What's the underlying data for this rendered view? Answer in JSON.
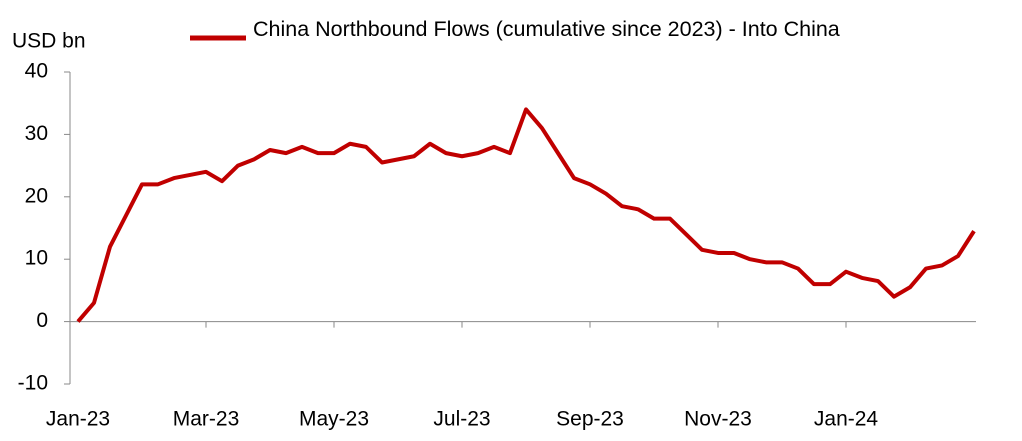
{
  "chart_data": {
    "type": "line",
    "y_label": "USD bn",
    "categories": [
      "Jan-23",
      null,
      null,
      null,
      null,
      null,
      null,
      null,
      "Mar-23",
      null,
      null,
      null,
      null,
      null,
      null,
      null,
      "May-23",
      null,
      null,
      null,
      null,
      null,
      null,
      null,
      "Jul-23",
      null,
      null,
      null,
      null,
      null,
      null,
      null,
      "Sep-23",
      null,
      null,
      null,
      null,
      null,
      null,
      null,
      "Nov-23",
      null,
      null,
      null,
      null,
      null,
      null,
      null,
      "Jan-24",
      null,
      null,
      null,
      null,
      null,
      null,
      null,
      null
    ],
    "series": [
      {
        "name": "China Northbound Flows (cumulative since 2023) - Into China",
        "color": "#c00000",
        "values": [
          0,
          3,
          12,
          17,
          22,
          22,
          23,
          23.5,
          24,
          22.5,
          25,
          26,
          27.5,
          27,
          28,
          27,
          27,
          28.5,
          28,
          25.5,
          26,
          26.5,
          28.5,
          27,
          26.5,
          27,
          28,
          27,
          34,
          31,
          27,
          23,
          22,
          20.5,
          18.5,
          18,
          16.5,
          16.5,
          14,
          11.5,
          11,
          11,
          10,
          9.5,
          9.5,
          8.5,
          6,
          6,
          8,
          7,
          6.5,
          4,
          5.5,
          8.5,
          9,
          10.5,
          14.5
        ]
      }
    ],
    "ylim": [
      -10,
      40
    ],
    "yticks": [
      -10,
      0,
      10,
      20,
      30,
      40
    ]
  }
}
